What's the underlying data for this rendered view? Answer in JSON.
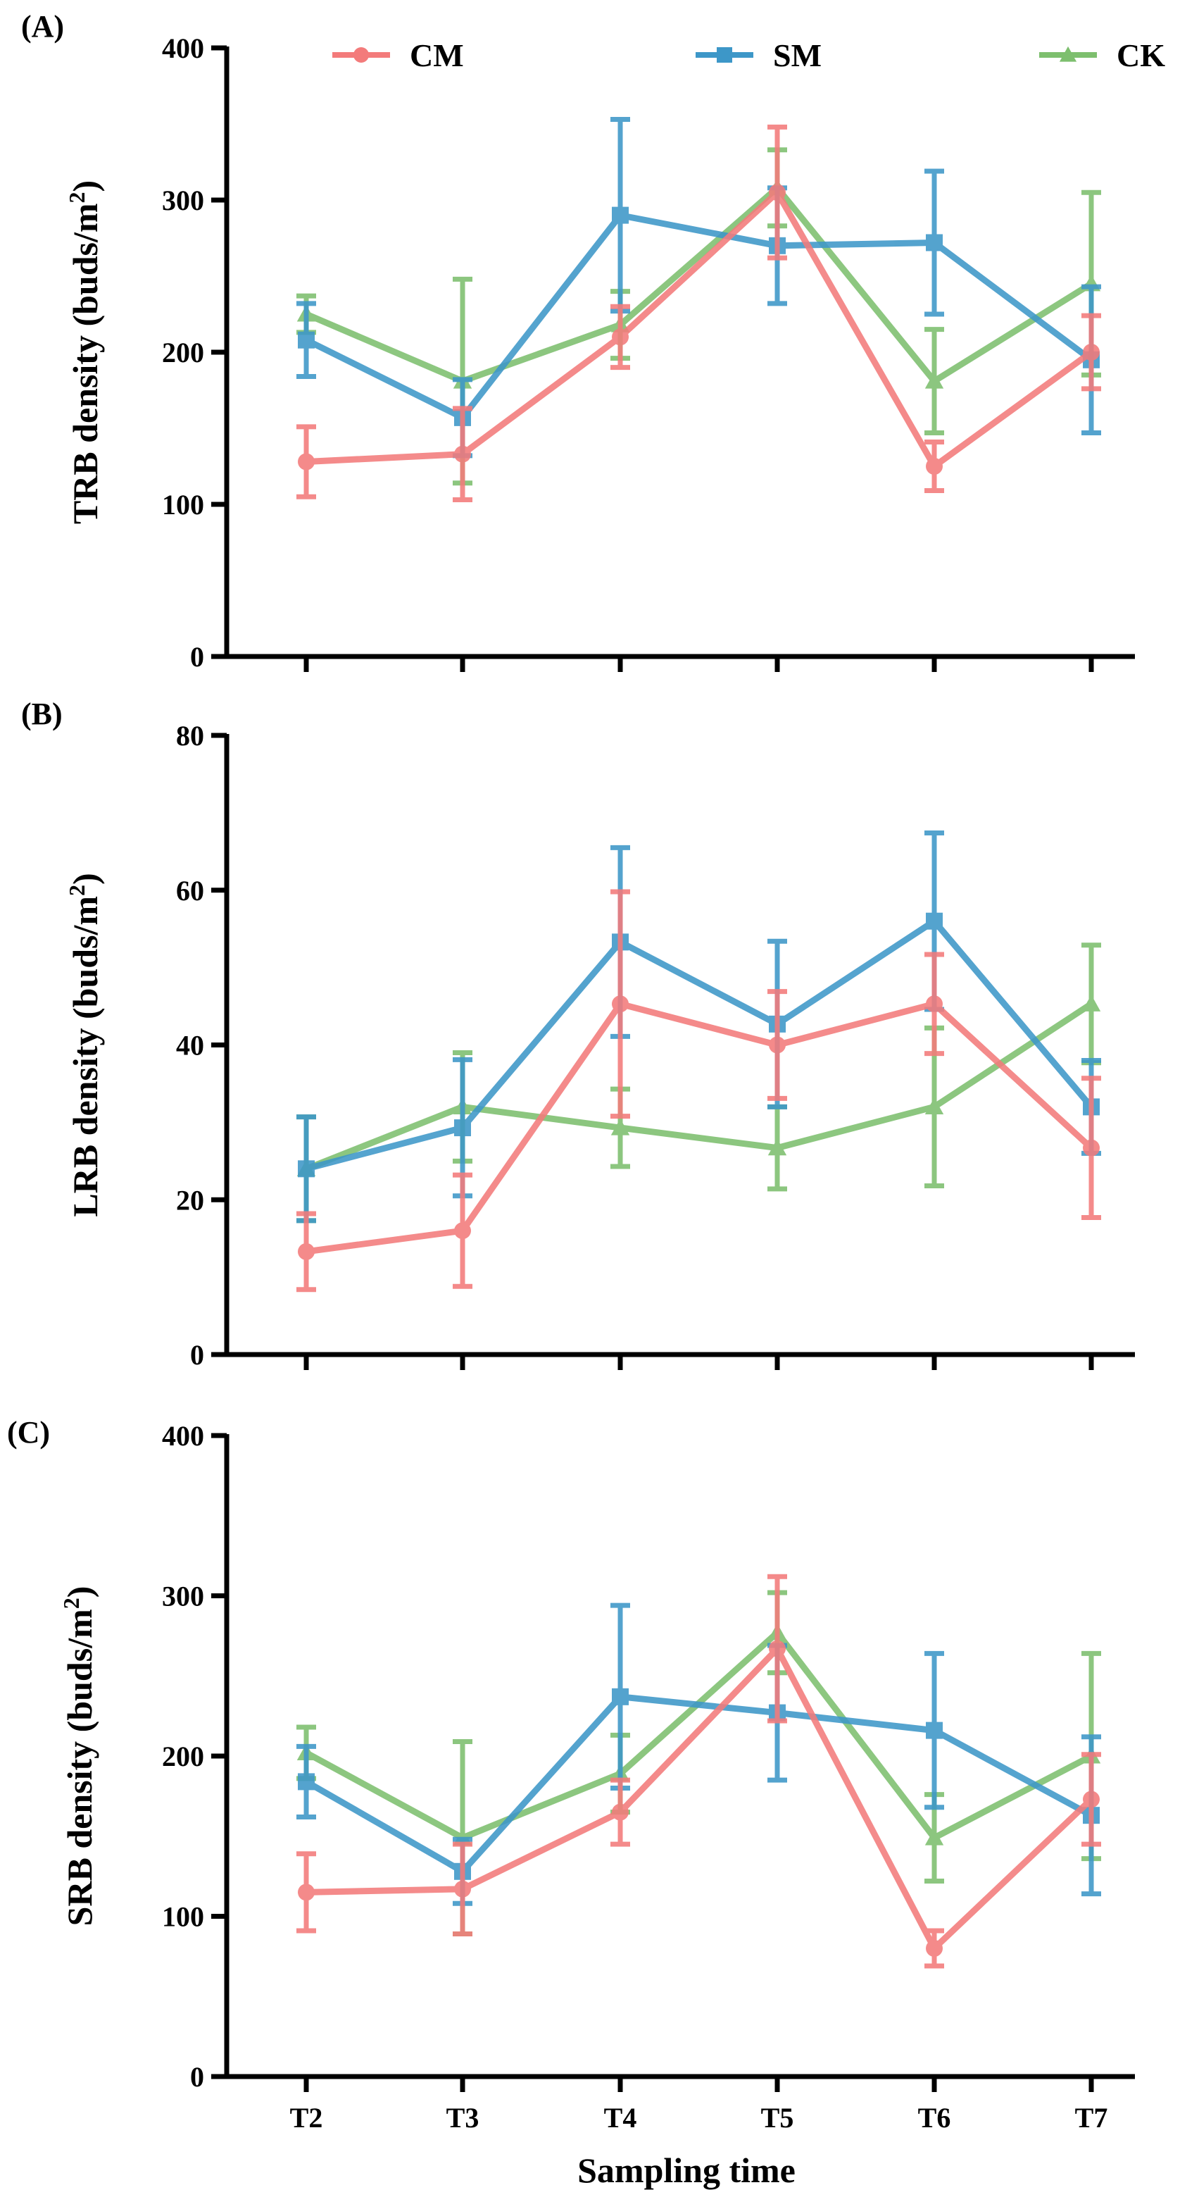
{
  "chart_data": [
    {
      "type": "line",
      "panel_label": "(A)",
      "ylabel_prefix": "TRB density (buds/m",
      "ylabel_sup": "2",
      "ylabel_suffix": ")",
      "ylim": [
        0,
        400
      ],
      "yticks": [
        0,
        100,
        200,
        300,
        400
      ],
      "categories": [
        "T2",
        "T3",
        "T4",
        "T5",
        "T6",
        "T7"
      ],
      "series": [
        {
          "name": "CK",
          "color": "#7dbf6e",
          "marker": "triangle",
          "values": [
            225,
            181,
            218,
            308,
            181,
            245
          ],
          "errors": [
            12,
            67,
            22,
            25,
            34,
            60
          ]
        },
        {
          "name": "SM",
          "color": "#3d97c8",
          "marker": "square",
          "values": [
            208,
            157,
            290,
            270,
            272,
            195
          ],
          "errors": [
            24,
            25,
            63,
            38,
            47,
            48
          ]
        },
        {
          "name": "CM",
          "color": "#f37b7b",
          "marker": "circle",
          "values": [
            128,
            133,
            210,
            305,
            125,
            200
          ],
          "errors": [
            23,
            30,
            20,
            43,
            16,
            24
          ]
        }
      ]
    },
    {
      "type": "line",
      "panel_label": "(B)",
      "ylabel_prefix": "LRB density (buds/m",
      "ylabel_sup": "2",
      "ylabel_suffix": ")",
      "ylim": [
        0,
        80
      ],
      "yticks": [
        0,
        20,
        40,
        60,
        80
      ],
      "categories": [
        "T2",
        "T3",
        "T4",
        "T5",
        "T6",
        "T7"
      ],
      "series": [
        {
          "name": "CK",
          "color": "#7dbf6e",
          "marker": "triangle",
          "values": [
            24,
            32,
            29.3,
            26.7,
            32,
            45.3
          ],
          "errors": [
            6.7,
            7,
            5,
            5.3,
            10.2,
            7.6
          ]
        },
        {
          "name": "SM",
          "color": "#3d97c8",
          "marker": "square",
          "values": [
            24,
            29.3,
            53.3,
            42.7,
            56,
            32
          ],
          "errors": [
            6.7,
            8.8,
            12.2,
            10.7,
            11.4,
            6
          ]
        },
        {
          "name": "CM",
          "color": "#f37b7b",
          "marker": "circle",
          "values": [
            13.3,
            16,
            45.3,
            40,
            45.3,
            26.7
          ],
          "errors": [
            4.9,
            7.2,
            14.5,
            6.9,
            6.4,
            9
          ]
        }
      ]
    },
    {
      "type": "line",
      "panel_label": "(C)",
      "ylabel_prefix": "SRB density (buds/m",
      "ylabel_sup": "2",
      "ylabel_suffix": ")",
      "ylim": [
        0,
        400
      ],
      "yticks": [
        0,
        100,
        200,
        300,
        400
      ],
      "xlabel": "Sampling time",
      "categories": [
        "T2",
        "T3",
        "T4",
        "T5",
        "T6",
        "T7"
      ],
      "series": [
        {
          "name": "CK",
          "color": "#7dbf6e",
          "marker": "triangle",
          "values": [
            202,
            149,
            189,
            277,
            149,
            200
          ],
          "errors": [
            16,
            60,
            24,
            25,
            27,
            64
          ]
        },
        {
          "name": "SM",
          "color": "#3d97c8",
          "marker": "square",
          "values": [
            184,
            128,
            237,
            227,
            216,
            163
          ],
          "errors": [
            22,
            20,
            57,
            42,
            48,
            49
          ]
        },
        {
          "name": "CM",
          "color": "#f37b7b",
          "marker": "circle",
          "values": [
            115,
            117,
            165,
            267,
            80,
            173
          ],
          "errors": [
            24,
            28,
            20,
            45,
            11,
            28
          ]
        }
      ]
    }
  ],
  "legend": [
    {
      "name": "CM",
      "color": "#f37b7b",
      "marker": "circle"
    },
    {
      "name": "SM",
      "color": "#3d97c8",
      "marker": "square"
    },
    {
      "name": "CK",
      "color": "#7dbf6e",
      "marker": "triangle"
    }
  ]
}
